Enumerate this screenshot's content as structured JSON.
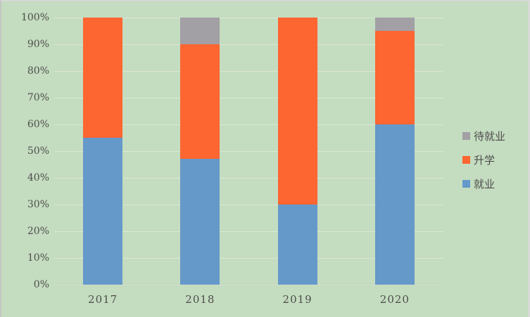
{
  "chart_data": {
    "type": "bar",
    "variant": "stacked-100-percent-column",
    "title": "",
    "xlabel": "",
    "ylabel": "",
    "categories": [
      "2017",
      "2018",
      "2019",
      "2020"
    ],
    "series": [
      {
        "id": "jiuye",
        "name": "就业",
        "color": "#6599ca",
        "values": [
          55,
          47,
          30,
          60
        ]
      },
      {
        "id": "shengxue",
        "name": "升学",
        "color": "#fd6531",
        "values": [
          45,
          43,
          70,
          35
        ]
      },
      {
        "id": "daijiuye",
        "name": "待就业",
        "color": "#a29fa5",
        "values": [
          0,
          10,
          0,
          5
        ]
      }
    ],
    "stack_order": [
      "jiuye",
      "shengxue",
      "daijiuye"
    ],
    "legend_order": [
      "daijiuye",
      "shengxue",
      "jiuye"
    ],
    "yticks": [
      "100%",
      "90%",
      "80%",
      "70%",
      "60%",
      "50%",
      "40%",
      "30%",
      "20%",
      "10%",
      "0%"
    ],
    "ylim": [
      0,
      100
    ],
    "grid": true,
    "legend_position": "right",
    "colors": {
      "background": "#c4dcbf",
      "gridline": "#dbe7d6",
      "axis_text": "#4e4e4e"
    }
  }
}
